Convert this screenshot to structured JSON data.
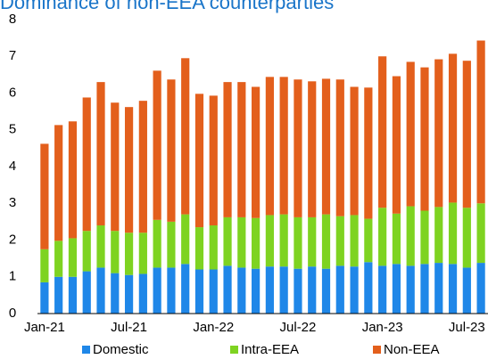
{
  "chart_data": {
    "type": "stacked_bar",
    "title": "Dominance of non-EEA counterparties",
    "categories": [
      "Jan-21",
      null,
      null,
      null,
      null,
      null,
      "Jul-21",
      null,
      null,
      null,
      null,
      null,
      "Jan-22",
      null,
      null,
      null,
      null,
      null,
      "Jul-22",
      null,
      null,
      null,
      null,
      null,
      "Jan-23",
      null,
      null,
      null,
      null,
      null,
      "Jul-23",
      null
    ],
    "series": [
      {
        "name": "Domestic",
        "color": "#1f87e8",
        "values": [
          0.85,
          1.0,
          1.0,
          1.15,
          1.25,
          1.1,
          1.05,
          1.08,
          1.25,
          1.25,
          1.35,
          1.2,
          1.2,
          1.3,
          1.25,
          1.22,
          1.28,
          1.28,
          1.22,
          1.28,
          1.22,
          1.3,
          1.28,
          1.4,
          1.3,
          1.35,
          1.3,
          1.35,
          1.38,
          1.35,
          1.25,
          1.38
        ]
      },
      {
        "name": "Intra-EEA",
        "color": "#7ed321",
        "values": [
          0.9,
          0.98,
          1.05,
          1.1,
          1.15,
          1.15,
          1.15,
          1.12,
          1.3,
          1.25,
          1.35,
          1.15,
          1.2,
          1.32,
          1.37,
          1.38,
          1.4,
          1.42,
          1.4,
          1.34,
          1.48,
          1.35,
          1.4,
          1.18,
          1.58,
          1.37,
          1.62,
          1.45,
          1.52,
          1.67,
          1.63,
          1.62
        ]
      },
      {
        "name": "Non-EEA",
        "color": "#e35f1c",
        "values": [
          2.87,
          3.15,
          3.18,
          3.63,
          3.9,
          3.49,
          3.42,
          3.59,
          4.06,
          3.87,
          4.25,
          3.63,
          3.53,
          3.68,
          3.68,
          3.57,
          3.76,
          3.74,
          3.75,
          3.7,
          3.69,
          3.72,
          3.49,
          3.57,
          4.12,
          3.74,
          3.93,
          3.9,
          4.02,
          4.05,
          4.0,
          4.43
        ]
      }
    ],
    "ylim": [
      0,
      8
    ],
    "yticks": [
      0,
      1,
      2,
      3,
      4,
      5,
      6,
      7,
      8
    ],
    "legend": "bottom"
  }
}
